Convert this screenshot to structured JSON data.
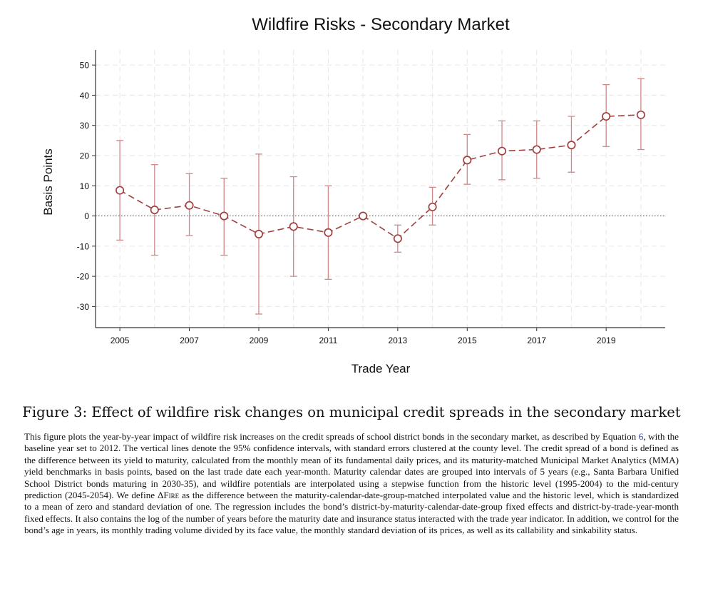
{
  "chart_data": {
    "type": "line",
    "title": "Wildfire Risks - Secondary Market",
    "xlabel": "Trade Year",
    "ylabel": "Basis Points",
    "xlim": [
      2004.3,
      2020.7
    ],
    "ylim": [
      -37,
      55
    ],
    "xticks": [
      2005,
      2007,
      2009,
      2011,
      2013,
      2015,
      2017,
      2019
    ],
    "yticks": [
      50,
      40,
      30,
      20,
      10,
      0,
      -10,
      -20,
      -30
    ],
    "grid": true,
    "reference_line_y": 0,
    "marker": "hollow-circle",
    "line_style": "dashed",
    "color": "#a0403f",
    "ci_color": "#d08888",
    "series": [
      {
        "points": [
          {
            "x": 2005,
            "y": 8.5,
            "lo": -8,
            "hi": 25
          },
          {
            "x": 2006,
            "y": 2,
            "lo": -13,
            "hi": 17
          },
          {
            "x": 2007,
            "y": 3.5,
            "lo": -6.5,
            "hi": 14
          },
          {
            "x": 2008,
            "y": 0,
            "lo": -13,
            "hi": 12.5
          },
          {
            "x": 2009,
            "y": -6,
            "lo": -32.5,
            "hi": 20.5
          },
          {
            "x": 2010,
            "y": -3.5,
            "lo": -20,
            "hi": 13
          },
          {
            "x": 2011,
            "y": -5.5,
            "lo": -21,
            "hi": 10
          },
          {
            "x": 2012,
            "y": 0,
            "lo": 0,
            "hi": 0
          },
          {
            "x": 2013,
            "y": -7.5,
            "lo": -12,
            "hi": -3
          },
          {
            "x": 2014,
            "y": 3,
            "lo": -3,
            "hi": 9.5
          },
          {
            "x": 2015,
            "y": 18.5,
            "lo": 10.5,
            "hi": 27
          },
          {
            "x": 2016,
            "y": 21.5,
            "lo": 12,
            "hi": 31.5
          },
          {
            "x": 2017,
            "y": 22,
            "lo": 12.5,
            "hi": 31.5
          },
          {
            "x": 2018,
            "y": 23.5,
            "lo": 14.5,
            "hi": 33
          },
          {
            "x": 2019,
            "y": 33,
            "lo": 23,
            "hi": 43.5
          },
          {
            "x": 2020,
            "y": 33.5,
            "lo": 22,
            "hi": 45.5
          }
        ]
      }
    ]
  },
  "caption": "Figure 3: Effect of wildfire risk changes on municipal credit spreads in the secondary market",
  "body": {
    "p1": "This figure plots the year-by-year impact of wildfire risk increases on the credit spreads of school district bonds in the secondary market, as described by Equation ",
    "eq_ref": "6",
    "p2": ", with the baseline year set to 2012. The vertical lines denote the 95% confidence intervals, with standard errors clustered at the county level. The credit spread of a bond is defined as the difference between its yield to maturity, calculated from the monthly mean of its fundamental daily prices, and its maturity-matched Municipal Market Analytics (MMA) yield benchmarks in basis points, based on the last trade date each year-month. Maturity calendar dates are grouped into intervals of 5 years (e.g., Santa Barbara Unified School District bonds maturing in 2030-35), and wildfire potentials are interpolated using a stepwise function from the historic level (1995-2004) to the mid-century prediction (2045-2054). We define ",
    "delta_fire": "ΔFire",
    "p3": " as the difference between the maturity-calendar-date-group-matched interpolated value and the historic level, which is standardized to a mean of zero and standard deviation of one. The regression includes the bond’s district-by-maturity-calendar-date-group fixed effects and district-by-trade-year-month fixed effects. It also contains the log of the number of years before the maturity date and insurance status interacted with the trade year indicator. In addition, we control for the bond’s age in years, its monthly trading volume divided by its face value, the monthly standard deviation of its prices, as well as its callability and sinkability status."
  }
}
